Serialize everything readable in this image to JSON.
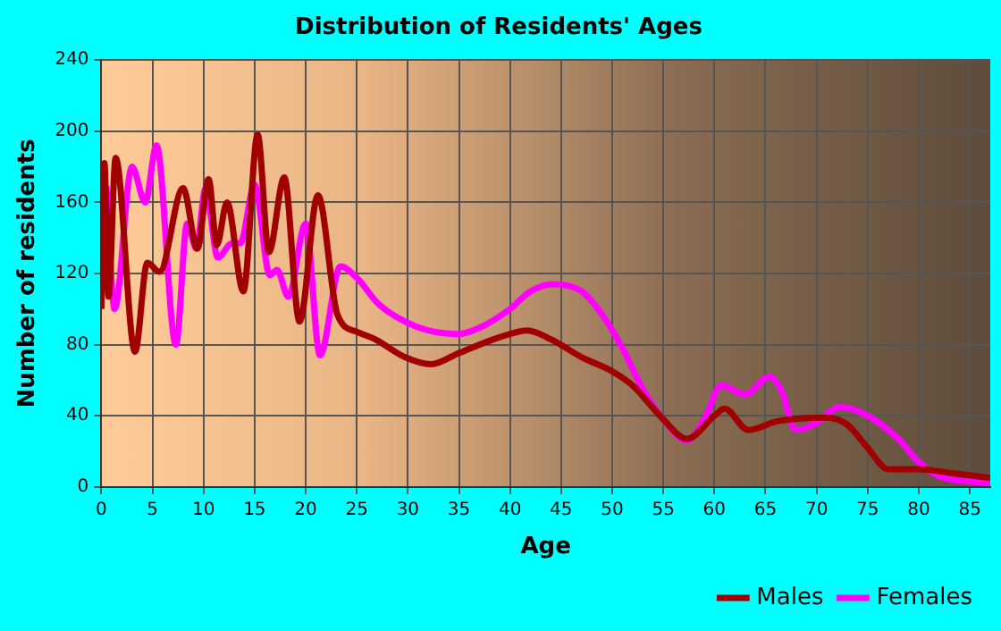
{
  "chart_data": {
    "type": "line",
    "title": "Distribution of Residents' Ages",
    "xlabel": "Age",
    "ylabel": "Number of residents",
    "xlim": [
      0,
      87
    ],
    "xticks": [
      0,
      5,
      10,
      15,
      20,
      25,
      30,
      35,
      40,
      45,
      50,
      55,
      60,
      65,
      70,
      75,
      80,
      85
    ],
    "ylim": [
      0,
      240
    ],
    "yticks": [
      0,
      40,
      80,
      120,
      160,
      200,
      240
    ],
    "grid": true,
    "legend": "bottom right",
    "marker": "none",
    "line_style": "solid",
    "series": [
      {
        "name": "Males",
        "color": "#a00000",
        "x": [
          0,
          0.3,
          0.7,
          1.4,
          3.3,
          4.5,
          5.7,
          8,
          9.4,
          10.5,
          11.3,
          12.3,
          13.9,
          15.3,
          16.4,
          17.9,
          19.4,
          21.2,
          23.1,
          25.1,
          26.8,
          29.7,
          32.3,
          34.9,
          38.9,
          41.7,
          44,
          47,
          50,
          52,
          55,
          57.3,
          60,
          61,
          63.3,
          66.2,
          71,
          73,
          75,
          77,
          80,
          83,
          87
        ],
        "values": [
          100,
          182,
          107,
          185,
          76,
          126,
          121,
          168,
          134,
          173,
          136,
          160,
          110,
          198,
          132,
          174,
          93,
          164,
          97,
          87,
          83,
          73,
          69,
          75,
          84,
          88,
          83,
          73,
          65,
          57,
          38,
          27,
          40,
          44,
          32,
          37,
          39,
          35,
          22,
          10,
          10,
          8,
          5
        ]
      },
      {
        "name": "Females",
        "color": "#ff00ff",
        "x": [
          0.5,
          1.3,
          3,
          4.3,
          5.4,
          7.3,
          8.4,
          9.3,
          10.2,
          11.4,
          12.8,
          13.6,
          15,
          16.5,
          17.2,
          18.3,
          20,
          21.4,
          23.4,
          25.1,
          27.1,
          30.9,
          34.9,
          37.2,
          40,
          42,
          44.3,
          47,
          49,
          51,
          53,
          55,
          57.3,
          59,
          60.7,
          63,
          65.4,
          66.5,
          68,
          70,
          72.3,
          75,
          78,
          80,
          82,
          85,
          87
        ],
        "values": [
          169,
          100,
          180,
          160,
          192,
          80,
          148,
          134,
          168,
          129,
          137,
          137,
          170,
          119,
          122,
          107,
          148,
          74,
          124,
          117,
          103,
          90,
          86,
          90,
          100,
          110,
          114,
          110,
          97,
          78,
          55,
          38,
          26,
          38,
          57,
          52,
          62,
          55,
          32,
          36,
          45,
          40,
          27,
          14,
          6,
          3,
          2
        ]
      }
    ]
  }
}
